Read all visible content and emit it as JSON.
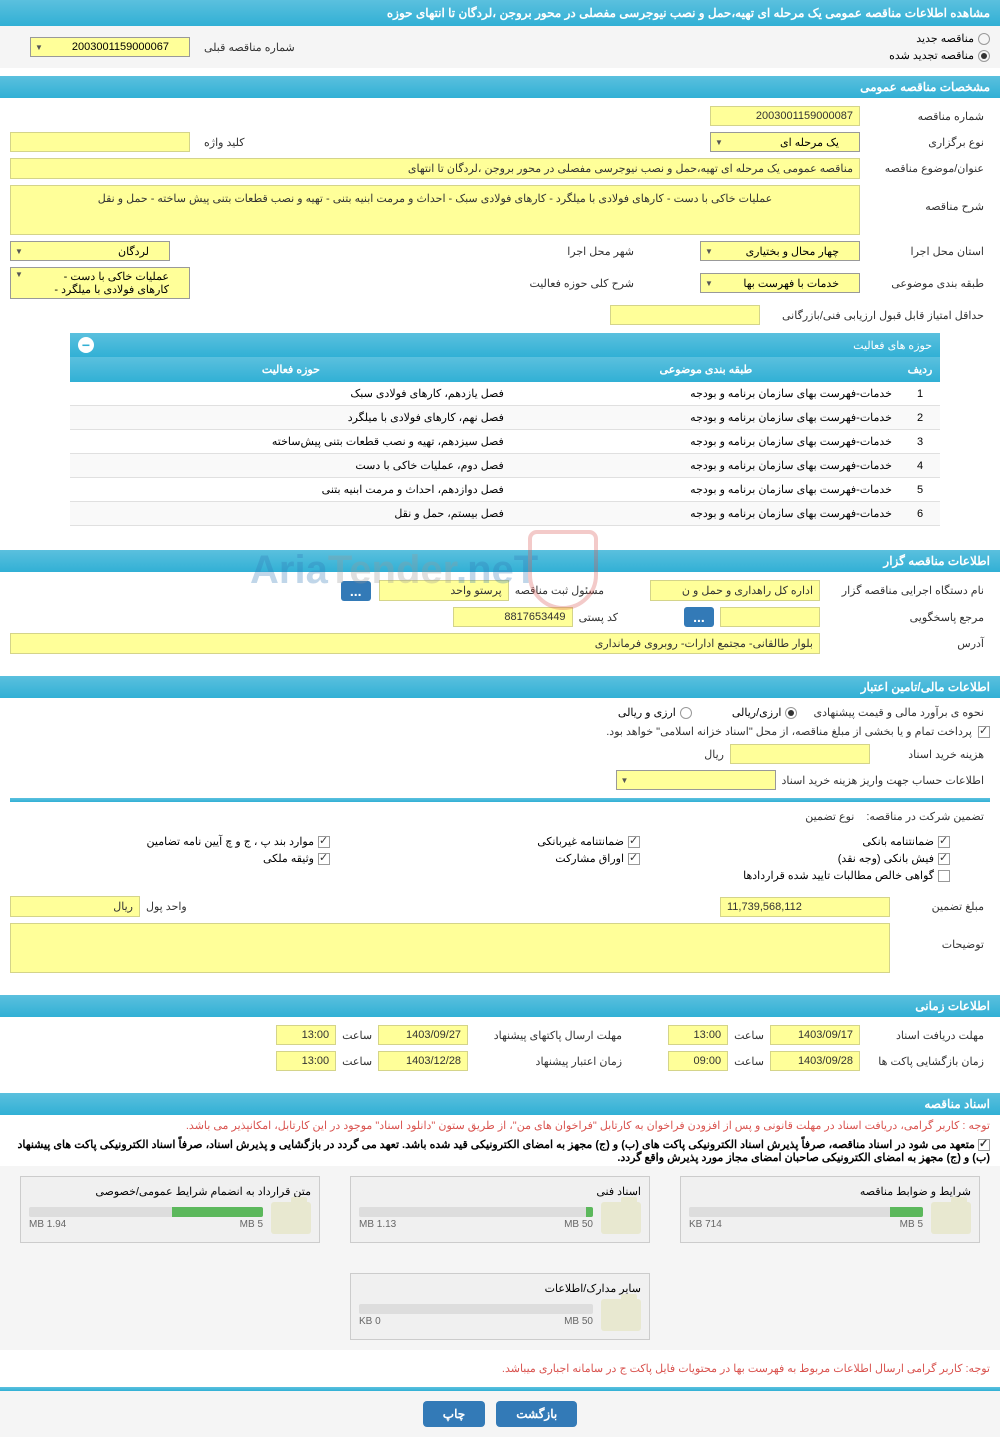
{
  "header": {
    "title": "مشاهده اطلاعات مناقصه عمومی یک مرحله ای تهیه،حمل و نصب نیوجرسی مفصلی در محور بروجن ،لردگان تا انتهای حوزه"
  },
  "tender_type": {
    "option_new": "مناقصه جدید",
    "option_renewed": "مناقصه تجدید شده",
    "prev_number_label": "شماره مناقصه قبلی",
    "prev_number": "2003001159000067"
  },
  "sections": {
    "general": "مشخصات مناقصه عمومی",
    "organizer": "اطلاعات مناقصه گزار",
    "financial": "اطلاعات مالی/تامین اعتبار",
    "timing": "اطلاعات زمانی",
    "documents": "اسناد مناقصه"
  },
  "general": {
    "number_label": "شماره مناقصه",
    "number": "2003001159000087",
    "type_label": "نوع برگزاری",
    "type": "یک مرحله ای",
    "keyword_label": "کلید واژه",
    "keyword": "",
    "subject_label": "عنوان/موضوع مناقصه",
    "subject": "مناقصه عمومی یک مرحله ای تهیه،حمل و نصب نیوجرسی مفصلی در محور بروجن ،لردگان تا انتهای",
    "desc_label": "شرح مناقصه",
    "desc": "عملیات خاکی با دست - کارهای فولادی با میلگرد - کارهای فولادی سبک - احداث و مرمت ابنیه بتنی - تهیه و نصب قطعات بتنی پیش ساخته - حمل و نقل",
    "province_label": "استان محل اجرا",
    "province": "چهار محال و بختیاری",
    "city_label": "شهر محل اجرا",
    "city": "لردگان",
    "category_label": "طبقه بندی موضوعی",
    "category": "خدمات با فهرست بها",
    "activity_scope_label": "شرح کلی حوزه فعالیت",
    "activity_scope_1": "عملیات خاکی با دست -",
    "activity_scope_2": "کارهای فولادی با میلگرد -",
    "min_score_label": "حداقل امتیاز قابل قبول ارزیابی فنی/بازرگانی",
    "min_score": ""
  },
  "activities_table": {
    "title": "حوزه های فعالیت",
    "col_num": "ردیف",
    "col_category": "طبقه بندی موضوعی",
    "col_activity": "حوزه فعالیت",
    "rows": [
      {
        "n": "1",
        "cat": "خدمات-فهرست بهای سازمان برنامه و بودجه",
        "act": "فصل یازدهم، کارهای فولادی سبک"
      },
      {
        "n": "2",
        "cat": "خدمات-فهرست بهای سازمان برنامه و بودجه",
        "act": "فصل نهم، کارهای فولادی با میلگرد"
      },
      {
        "n": "3",
        "cat": "خدمات-فهرست بهای سازمان برنامه و بودجه",
        "act": "فصل سیزدهم، تهیه و نصب قطعات بتنی پیش‌ساخته"
      },
      {
        "n": "4",
        "cat": "خدمات-فهرست بهای سازمان برنامه و بودجه",
        "act": "فصل دوم، عملیات خاکی با دست"
      },
      {
        "n": "5",
        "cat": "خدمات-فهرست بهای سازمان برنامه و بودجه",
        "act": "فصل دوازدهم، احداث و مرمت ابنیه بتنی"
      },
      {
        "n": "6",
        "cat": "خدمات-فهرست بهای سازمان برنامه و بودجه",
        "act": "فصل بیستم، حمل و نقل"
      }
    ]
  },
  "organizer": {
    "exec_label": "نام دستگاه اجرایی مناقصه گزار",
    "exec": "اداره کل راهداری و حمل و ن",
    "register_label": "مسئول ثبت مناقصه",
    "register": "پرستو واحد",
    "respond_label": "مرجع پاسخگویی",
    "respond": "",
    "postal_label": "کد پستی",
    "postal": "8817653449",
    "address_label": "آدرس",
    "address": "بلوار طالقانی- مجتمع ادارات- روبروی فرمانداری"
  },
  "financial": {
    "estimate_label": "نحوه ی برآورد مالی و قیمت پیشنهادی",
    "opt_rial": "ارزی/ریالی",
    "opt_currency": "ارزی و ریالی",
    "treasury_note": "پرداخت تمام و یا بخشی از مبلغ مناقصه، از محل \"اسناد خزانه اسلامی\" خواهد بود.",
    "cost_label": "هزینه خرید اسناد",
    "cost": "",
    "cost_unit": "ریال",
    "account_label": "اطلاعات حساب جهت واریز هزینه خرید اسناد",
    "guarantee_label": "تضمین شرکت در مناقصه:",
    "guarantee_type_label": "نوع تضمین",
    "g_bank": "ضمانتنامه بانکی",
    "g_nonbank": "ضمانتنامه غیربانکی",
    "g_bylaw": "موارد بند پ ، ج و چ آیین نامه تضامین",
    "g_cash": "فیش بانکی (وجه نقد)",
    "g_bonds": "اوراق مشارکت",
    "g_property": "وثیقه ملکی",
    "g_receivables": "گواهی خالص مطالبات تایید شده قراردادها",
    "amount_label": "مبلغ تضمین",
    "amount": "11,739,568,112",
    "unit_label": "واحد پول",
    "unit": "ریال",
    "notes_label": "توضیحات"
  },
  "timing": {
    "receive_label": "مهلت دریافت اسناد",
    "receive_date": "1403/09/17",
    "receive_time": "13:00",
    "send_label": "مهلت ارسال پاکتهای پیشنهاد",
    "send_date": "1403/09/27",
    "send_time": "13:00",
    "open_label": "زمان بازگشایی پاکت ها",
    "open_date": "1403/09/28",
    "open_time": "09:00",
    "validity_label": "زمان اعتبار پیشنهاد",
    "validity_date": "1403/12/28",
    "validity_time": "13:00",
    "time_word": "ساعت"
  },
  "documents": {
    "note1": "توجه : کاربر گرامی، دریافت اسناد در مهلت قانونی و پس از افزودن فراخوان به کارتابل \"فراخوان های من\"، از طریق ستون \"دانلود اسناد\" موجود در این کارتابل، امکانپذیر می باشد.",
    "note2": "متعهد می شود در اسناد مناقصه، صرفاً پذیرش اسناد الکترونیکی پاکت های (ب) و (ج) مجهز به امضای الکترونیکی قید شده باشد. تعهد می گردد در بازگشایی و پذیرش اسناد، صرفاً اسناد الکترونیکی پاکت های پیشنهاد (ب) و (ج) مجهز به امضای الکترونیکی صاحبان امضای مجاز مورد پذیرش واقع گردد.",
    "note3": "توجه: کاربر گرامی ارسال اطلاعات مربوط به فهرست بها در محتویات فایل پاکت ج در سامانه اجباری میباشد.",
    "files": [
      {
        "title": "شرایط و ضوابط مناقصه",
        "size": "714 KB",
        "max": "5 MB",
        "pct": 14
      },
      {
        "title": "اسناد فنی",
        "size": "1.13 MB",
        "max": "50 MB",
        "pct": 3
      },
      {
        "title": "متن قرارداد به انضمام شرایط عمومی/خصوصی",
        "size": "1.94 MB",
        "max": "5 MB",
        "pct": 39
      },
      {
        "title": "سایر مدارک/اطلاعات",
        "size": "0 KB",
        "max": "50 MB",
        "pct": 0
      }
    ]
  },
  "buttons": {
    "back": "بازگشت",
    "print": "چاپ",
    "dots": "..."
  },
  "watermark": "AriaTender.net"
}
